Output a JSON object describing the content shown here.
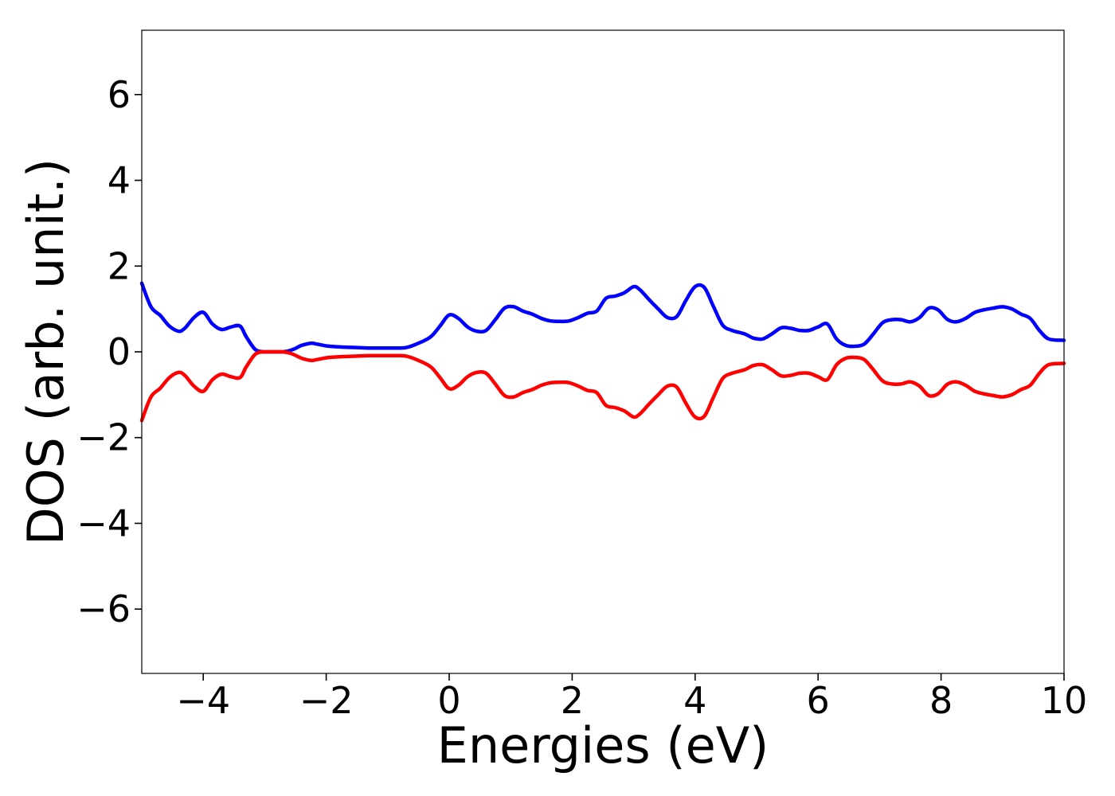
{
  "chart_data": {
    "type": "line",
    "title": "",
    "xlabel": "Energies (eV)",
    "ylabel": "DOS (arb. unit.)",
    "xlim": [
      -5,
      10
    ],
    "ylim": [
      -7.5,
      7.5
    ],
    "xticks": [
      -4,
      -2,
      0,
      2,
      4,
      6,
      8,
      10
    ],
    "yticks": [
      -6,
      -4,
      -2,
      0,
      2,
      4,
      6
    ],
    "xtick_labels": [
      "−4",
      "−2",
      "0",
      "2",
      "4",
      "6",
      "8",
      "10"
    ],
    "ytick_labels": [
      "−6",
      "−4",
      "−2",
      "0",
      "2",
      "4",
      "6"
    ],
    "grid": false,
    "legend": "none",
    "series": [
      {
        "color": "#0000ff",
        "x": [
          -5.0,
          -4.85,
          -4.7,
          -4.55,
          -4.4,
          -4.3,
          -4.15,
          -4.0,
          -3.85,
          -3.7,
          -3.55,
          -3.4,
          -3.3,
          -3.15,
          -3.0,
          -2.85,
          -2.7,
          -2.55,
          -2.4,
          -2.25,
          -2.15,
          -2.0,
          -1.85,
          -1.7,
          -1.5,
          -1.3,
          -1.1,
          -0.9,
          -0.7,
          -0.5,
          -0.3,
          -0.15,
          0.0,
          0.15,
          0.3,
          0.45,
          0.6,
          0.75,
          0.9,
          1.05,
          1.2,
          1.35,
          1.5,
          1.65,
          1.8,
          1.95,
          2.1,
          2.25,
          2.4,
          2.55,
          2.7,
          2.85,
          3.0,
          3.1,
          3.25,
          3.4,
          3.55,
          3.7,
          3.85,
          4.0,
          4.15,
          4.3,
          4.45,
          4.6,
          4.8,
          4.95,
          5.1,
          5.25,
          5.4,
          5.55,
          5.7,
          5.85,
          6.0,
          6.15,
          6.3,
          6.45,
          6.6,
          6.75,
          6.9,
          7.05,
          7.2,
          7.35,
          7.5,
          7.65,
          7.8,
          7.95,
          8.1,
          8.25,
          8.4,
          8.55,
          8.7,
          8.85,
          9.0,
          9.15,
          9.3,
          9.45,
          9.6,
          9.75,
          10.0
        ],
        "y": [
          1.6,
          1.05,
          0.85,
          0.6,
          0.48,
          0.55,
          0.8,
          0.92,
          0.65,
          0.52,
          0.58,
          0.6,
          0.35,
          0.05,
          0.0,
          0.0,
          0.0,
          0.05,
          0.15,
          0.2,
          0.18,
          0.14,
          0.12,
          0.11,
          0.1,
          0.09,
          0.09,
          0.09,
          0.1,
          0.2,
          0.35,
          0.6,
          0.86,
          0.78,
          0.58,
          0.48,
          0.5,
          0.75,
          1.02,
          1.05,
          0.95,
          0.88,
          0.78,
          0.72,
          0.71,
          0.72,
          0.8,
          0.9,
          0.95,
          1.25,
          1.3,
          1.38,
          1.52,
          1.45,
          1.22,
          1.0,
          0.8,
          0.82,
          1.2,
          1.52,
          1.5,
          1.05,
          0.62,
          0.5,
          0.42,
          0.32,
          0.3,
          0.42,
          0.56,
          0.55,
          0.5,
          0.5,
          0.58,
          0.65,
          0.3,
          0.15,
          0.13,
          0.18,
          0.42,
          0.68,
          0.75,
          0.75,
          0.7,
          0.8,
          1.02,
          0.98,
          0.76,
          0.7,
          0.78,
          0.92,
          0.98,
          1.02,
          1.05,
          1.0,
          0.88,
          0.78,
          0.5,
          0.3,
          0.27
        ]
      },
      {
        "color": "#ff0000",
        "x": [
          -5.0,
          -4.85,
          -4.7,
          -4.55,
          -4.4,
          -4.3,
          -4.15,
          -4.0,
          -3.85,
          -3.7,
          -3.55,
          -3.4,
          -3.3,
          -3.15,
          -3.0,
          -2.85,
          -2.7,
          -2.55,
          -2.4,
          -2.25,
          -2.15,
          -2.0,
          -1.85,
          -1.7,
          -1.5,
          -1.3,
          -1.1,
          -0.9,
          -0.7,
          -0.5,
          -0.3,
          -0.15,
          0.0,
          0.15,
          0.3,
          0.45,
          0.6,
          0.75,
          0.9,
          1.05,
          1.2,
          1.35,
          1.5,
          1.65,
          1.8,
          1.95,
          2.1,
          2.25,
          2.4,
          2.55,
          2.7,
          2.85,
          3.0,
          3.1,
          3.25,
          3.4,
          3.55,
          3.7,
          3.85,
          4.0,
          4.15,
          4.3,
          4.45,
          4.6,
          4.8,
          4.95,
          5.1,
          5.25,
          5.4,
          5.55,
          5.7,
          5.85,
          6.0,
          6.15,
          6.3,
          6.45,
          6.6,
          6.75,
          6.9,
          7.05,
          7.2,
          7.35,
          7.5,
          7.65,
          7.8,
          7.95,
          8.1,
          8.25,
          8.4,
          8.55,
          8.7,
          8.85,
          9.0,
          9.15,
          9.3,
          9.45,
          9.6,
          9.75,
          10.0
        ],
        "y": [
          -1.6,
          -1.05,
          -0.85,
          -0.6,
          -0.48,
          -0.55,
          -0.8,
          -0.92,
          -0.65,
          -0.52,
          -0.58,
          -0.6,
          -0.35,
          -0.05,
          0.0,
          0.0,
          0.0,
          -0.05,
          -0.15,
          -0.2,
          -0.18,
          -0.14,
          -0.12,
          -0.11,
          -0.1,
          -0.09,
          -0.09,
          -0.09,
          -0.1,
          -0.2,
          -0.35,
          -0.6,
          -0.86,
          -0.78,
          -0.58,
          -0.48,
          -0.5,
          -0.75,
          -1.02,
          -1.05,
          -0.95,
          -0.88,
          -0.78,
          -0.72,
          -0.71,
          -0.72,
          -0.8,
          -0.9,
          -0.95,
          -1.25,
          -1.3,
          -1.38,
          -1.52,
          -1.45,
          -1.22,
          -1.0,
          -0.8,
          -0.82,
          -1.2,
          -1.52,
          -1.5,
          -1.05,
          -0.62,
          -0.5,
          -0.42,
          -0.32,
          -0.3,
          -0.42,
          -0.56,
          -0.55,
          -0.5,
          -0.5,
          -0.58,
          -0.65,
          -0.3,
          -0.15,
          -0.13,
          -0.18,
          -0.42,
          -0.68,
          -0.75,
          -0.75,
          -0.7,
          -0.8,
          -1.02,
          -0.98,
          -0.76,
          -0.7,
          -0.78,
          -0.92,
          -0.98,
          -1.02,
          -1.05,
          -1.0,
          -0.88,
          -0.78,
          -0.5,
          -0.3,
          -0.27
        ]
      }
    ]
  }
}
